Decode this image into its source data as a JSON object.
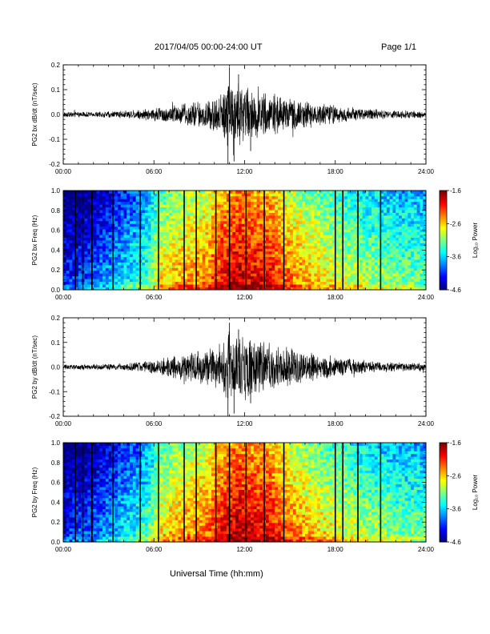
{
  "header": {
    "title": "2017/04/05  00:00-24:00 UT",
    "page": "Page 1/1"
  },
  "xlabel": "Universal Time (hh:mm)",
  "chart_data": [
    {
      "type": "line",
      "ylabel": "PG2 bx dB/dt (nT/sec)",
      "xlim": [
        0,
        24
      ],
      "ylim": [
        -0.2,
        0.2
      ],
      "xticks": [
        "00:00",
        "06:00",
        "12:00",
        "18:00",
        "24:00"
      ],
      "yticks": [
        "-0.2",
        "-0.1",
        "0.0",
        "0.1",
        "0.2"
      ],
      "envelope": {
        "hour": [
          0,
          2,
          4,
          6,
          7,
          8,
          9,
          10,
          10.5,
          11,
          11.5,
          12,
          13,
          14,
          15,
          16,
          17,
          18,
          19,
          20,
          21,
          22,
          23,
          24
        ],
        "amplitude": [
          0.012,
          0.012,
          0.016,
          0.028,
          0.04,
          0.05,
          0.06,
          0.075,
          0.1,
          0.17,
          0.16,
          0.12,
          0.1,
          0.085,
          0.07,
          0.06,
          0.05,
          0.04,
          0.032,
          0.026,
          0.02,
          0.018,
          0.016,
          0.014
        ]
      },
      "peak_max": 0.19,
      "peak_min": -0.21
    },
    {
      "type": "heatmap",
      "ylabel": "PG2 bx Freq (Hz)",
      "xlim": [
        0,
        24
      ],
      "ylim": [
        0,
        1
      ],
      "xticks": [
        "00:00",
        "06:00",
        "12:00",
        "18:00",
        "24:00"
      ],
      "yticks": [
        "0.0",
        "0.2",
        "0.4",
        "0.6",
        "0.8",
        "1.0"
      ],
      "colorbar": {
        "label": "Log₁₀ Power",
        "ticks": [
          "-1.6",
          "-2.6",
          "-3.6",
          "-4.6"
        ],
        "range": [
          -4.6,
          -1.6
        ]
      },
      "data_gaps_hour": [
        0.8,
        1.3,
        1.9,
        3.3,
        5.1,
        6.3,
        8.0,
        8.8,
        10.1,
        11.0,
        12.1,
        13.3,
        14.6,
        18.0,
        18.5,
        19.5,
        21.0
      ]
    },
    {
      "type": "line",
      "ylabel": "PG2 by dB/dt (nT/sec)",
      "xlim": [
        0,
        24
      ],
      "ylim": [
        -0.2,
        0.2
      ],
      "xticks": [
        "00:00",
        "06:00",
        "12:00",
        "18:00",
        "24:00"
      ],
      "yticks": [
        "-0.2",
        "-0.1",
        "0.0",
        "0.1",
        "0.2"
      ],
      "envelope": {
        "hour": [
          0,
          2,
          4,
          6,
          7,
          8,
          9,
          10,
          10.5,
          11,
          11.5,
          12,
          13,
          14,
          15,
          16,
          17,
          18,
          19,
          20,
          21,
          22,
          23,
          24
        ],
        "amplitude": [
          0.012,
          0.012,
          0.016,
          0.03,
          0.045,
          0.06,
          0.07,
          0.085,
          0.11,
          0.17,
          0.15,
          0.13,
          0.11,
          0.1,
          0.085,
          0.07,
          0.055,
          0.045,
          0.036,
          0.03,
          0.024,
          0.02,
          0.018,
          0.016
        ]
      },
      "peak_max": 0.18,
      "peak_min": -0.21
    },
    {
      "type": "heatmap",
      "ylabel": "PG2 by Freq (Hz)",
      "xlim": [
        0,
        24
      ],
      "ylim": [
        0,
        1
      ],
      "xticks": [
        "00:00",
        "06:00",
        "12:00",
        "18:00",
        "24:00"
      ],
      "yticks": [
        "0.0",
        "0.2",
        "0.4",
        "0.6",
        "0.8",
        "1.0"
      ],
      "colorbar": {
        "label": "Log₁₀ Power",
        "ticks": [
          "-1.6",
          "-2.6",
          "-3.6",
          "-4.6"
        ],
        "range": [
          -4.6,
          -1.6
        ]
      },
      "data_gaps_hour": [
        0.8,
        1.3,
        1.9,
        3.3,
        5.1,
        6.3,
        8.0,
        8.8,
        10.1,
        11.0,
        12.1,
        13.3,
        14.6,
        18.0,
        18.5,
        19.5,
        21.0
      ]
    }
  ]
}
